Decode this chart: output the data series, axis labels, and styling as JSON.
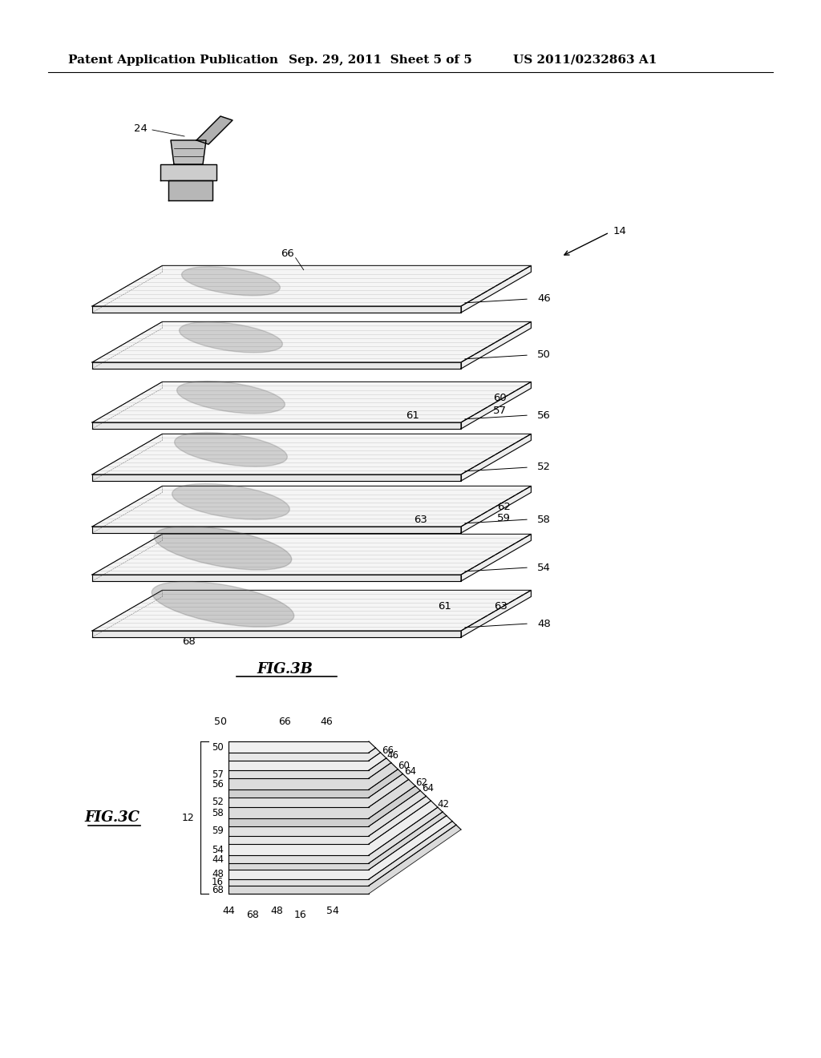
{
  "background_color": "#ffffff",
  "header_left": "Patent Application Publication",
  "header_mid": "Sep. 29, 2011  Sheet 5 of 5",
  "header_right": "US 2011/0232863 A1",
  "header_fontsize": 11,
  "fig3b_label": "FIG.3B",
  "fig3c_label": "FIG.3C"
}
